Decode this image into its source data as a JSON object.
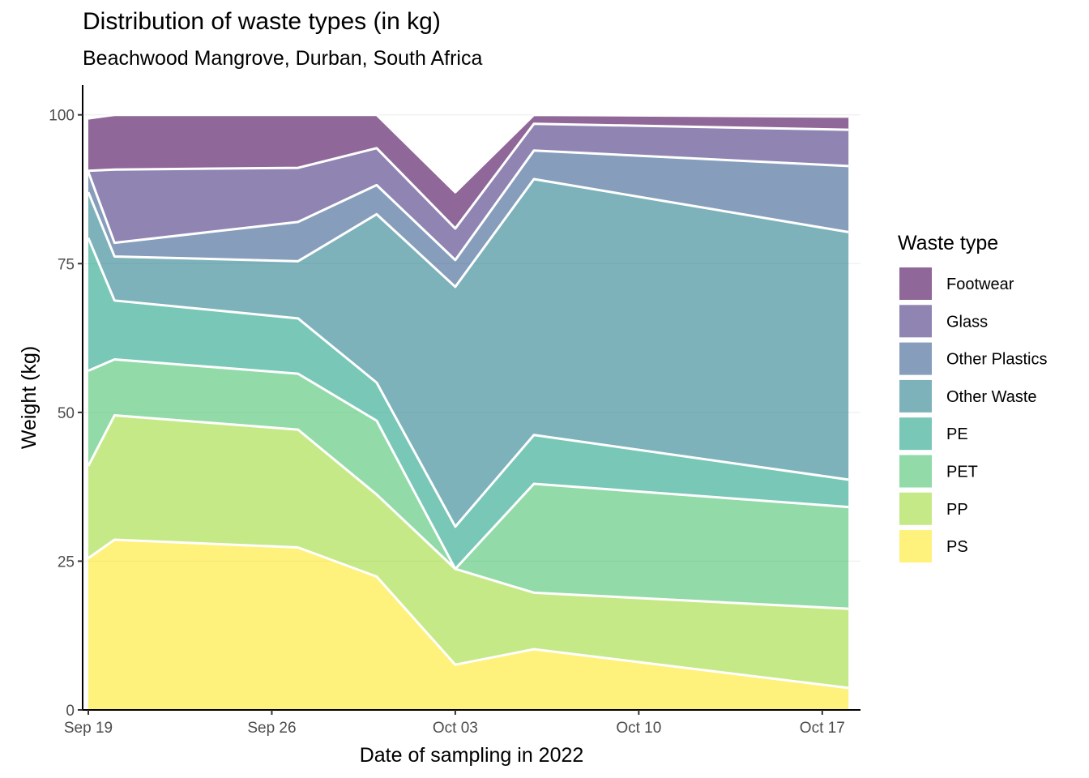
{
  "chart_data": {
    "type": "area",
    "stacked": true,
    "title": "Distribution of waste types (in kg)",
    "subtitle": "Beachwood Mangrove, Durban, South Africa",
    "xlabel": "Date of sampling in 2022",
    "ylabel": "Weight (kg)",
    "x_ticks": [
      {
        "date": "2022-09-19",
        "label": "Sep 19"
      },
      {
        "date": "2022-09-26",
        "label": "Sep 26"
      },
      {
        "date": "2022-10-03",
        "label": "Oct 03"
      },
      {
        "date": "2022-10-10",
        "label": "Oct 10"
      },
      {
        "date": "2022-10-17",
        "label": "Oct 17"
      }
    ],
    "xlim": [
      "2022-09-19",
      "2022-10-17"
    ],
    "ylim": [
      0,
      105
    ],
    "y_ticks": [
      0,
      25,
      50,
      75,
      100
    ],
    "grid": true,
    "legend_title": "Waste type",
    "legend_position": "right",
    "x": [
      "2022-09-19",
      "2022-09-20",
      "2022-09-27",
      "2022-09-30",
      "2022-10-03",
      "2022-10-06",
      "2022-10-18"
    ],
    "series": [
      {
        "name": "PS",
        "color": "#FDE725",
        "values": [
          25.5,
          28.6,
          27.3,
          22.4,
          7.6,
          10.2,
          3.7
        ]
      },
      {
        "name": "PP",
        "color": "#A0DA39",
        "values": [
          15.5,
          20.9,
          19.8,
          13.8,
          16.1,
          9.5,
          13.3
        ]
      },
      {
        "name": "PET",
        "color": "#4AC16D",
        "values": [
          16.0,
          9.4,
          9.4,
          12.4,
          0.0,
          18.3,
          17.1
        ]
      },
      {
        "name": "PE",
        "color": "#1FA187",
        "values": [
          22.3,
          9.9,
          9.3,
          6.4,
          7.1,
          8.2,
          4.6
        ]
      },
      {
        "name": "Other Waste",
        "color": "#277F8E",
        "values": [
          7.7,
          7.4,
          9.6,
          28.3,
          40.3,
          43.0,
          41.6
        ]
      },
      {
        "name": "Other Plastics",
        "color": "#365C8D",
        "values": [
          3.4,
          2.3,
          6.6,
          4.9,
          4.5,
          4.8,
          11.1
        ]
      },
      {
        "name": "Glass",
        "color": "#46327E",
        "values": [
          0.2,
          12.3,
          9.1,
          6.2,
          5.3,
          4.5,
          6.1
        ]
      },
      {
        "name": "Footwear",
        "color": "#440154",
        "values": [
          8.8,
          9.2,
          8.9,
          5.6,
          6.1,
          1.5,
          2.2
        ]
      }
    ],
    "legend_order": [
      "Footwear",
      "Glass",
      "Other Plastics",
      "Other Waste",
      "PE",
      "PET",
      "PP",
      "PS"
    ]
  }
}
